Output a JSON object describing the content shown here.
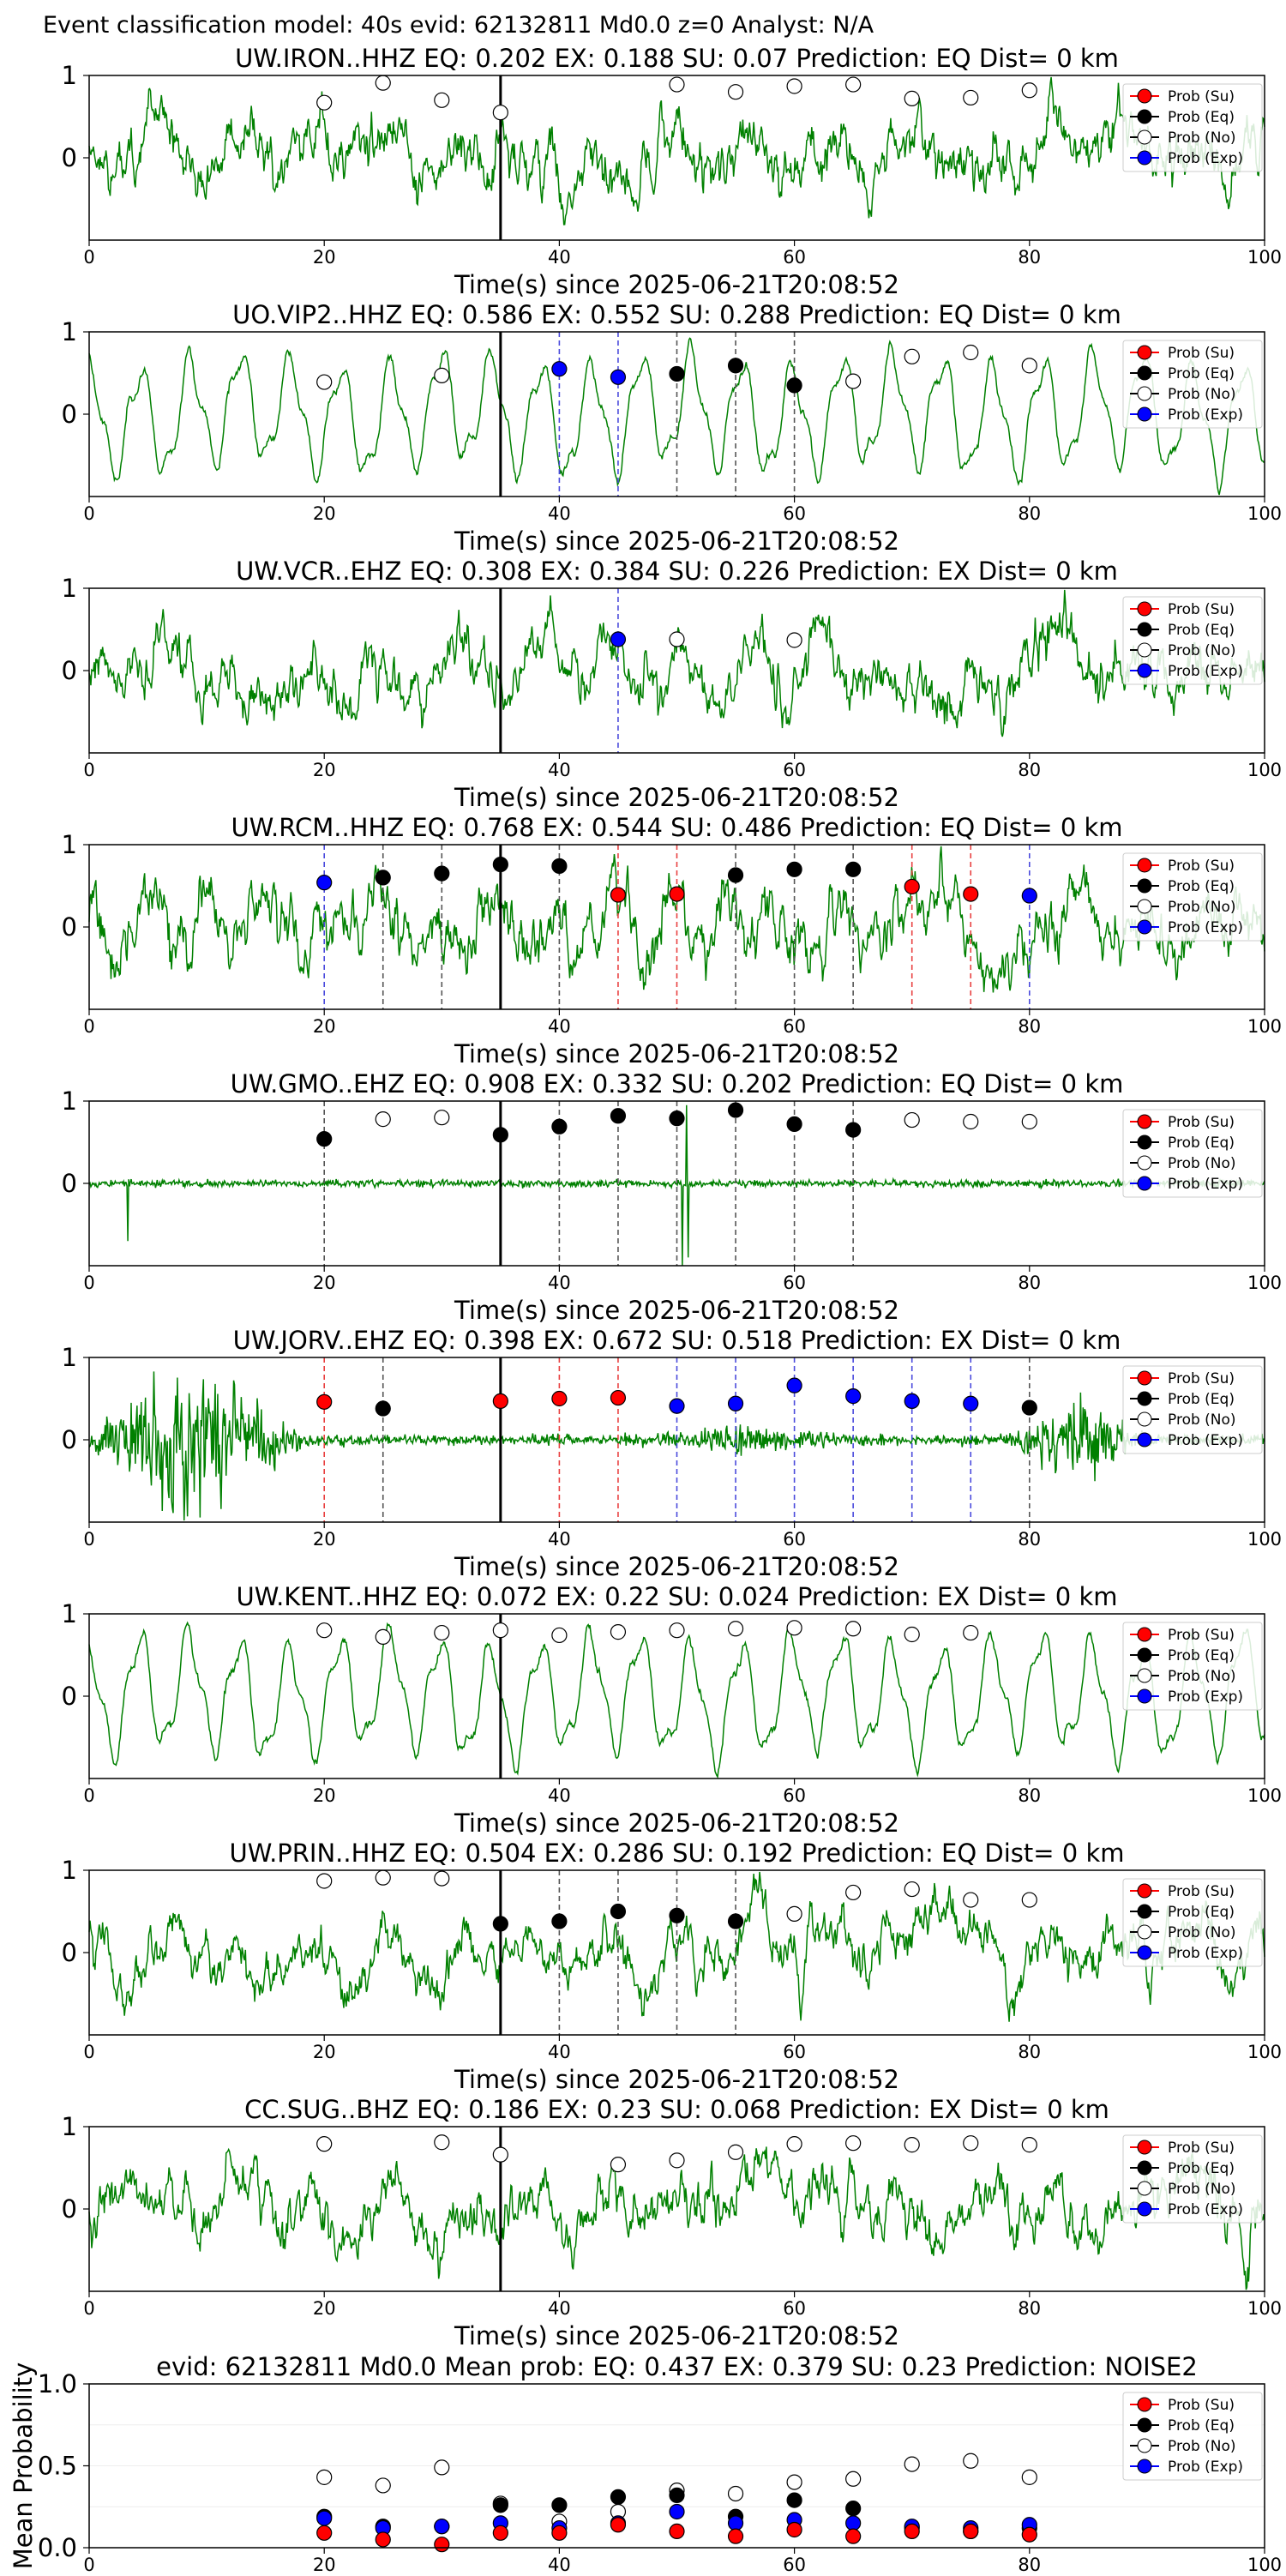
{
  "header": "Event classification model: 40s evid: 62132811 Md0.0 z=0 Analyst: N/A",
  "legend_labels": [
    "Prob (Su)",
    "Prob (Eq)",
    "Prob (No)",
    "Prob (Exp)"
  ],
  "colors": {
    "waveform": "#008000",
    "su": "#ff0000",
    "eq": "#000000",
    "no": "#ffffff",
    "exp": "#0000ff",
    "su_line": "#e84040",
    "eq_line": "#555555",
    "exp_line": "#4a4adc",
    "pick_line": "#000000"
  },
  "chart_data": [
    {
      "type": "scatter",
      "title": "UW.IRON..HHZ   EQ: 0.202  EX: 0.188  SU: 0.07   Prediction: EQ    Dist= 0 km",
      "xlabel": "Time(s) since 2025-06-21T20:08:52",
      "xlim": [
        0,
        100
      ],
      "ylim": [
        -1,
        1
      ],
      "xticks": [
        0,
        20,
        40,
        60,
        80,
        100
      ],
      "yticks": [
        0,
        1
      ],
      "pick_time": 35,
      "waveform": {
        "style": "noisy",
        "seed": 11
      },
      "points": [
        {
          "x": 20,
          "y": 0.67,
          "class": "no",
          "line": false
        },
        {
          "x": 25,
          "y": 0.91,
          "class": "no",
          "line": false
        },
        {
          "x": 30,
          "y": 0.7,
          "class": "no",
          "line": false
        },
        {
          "x": 35,
          "y": 0.55,
          "class": "no",
          "line": false
        },
        {
          "x": 50,
          "y": 0.89,
          "class": "no",
          "line": false
        },
        {
          "x": 55,
          "y": 0.8,
          "class": "no",
          "line": false
        },
        {
          "x": 60,
          "y": 0.87,
          "class": "no",
          "line": false
        },
        {
          "x": 65,
          "y": 0.89,
          "class": "no",
          "line": false
        },
        {
          "x": 70,
          "y": 0.72,
          "class": "no",
          "line": false
        },
        {
          "x": 75,
          "y": 0.73,
          "class": "no",
          "line": false
        },
        {
          "x": 80,
          "y": 0.82,
          "class": "no",
          "line": false
        }
      ]
    },
    {
      "type": "scatter",
      "title": "UO.VIP2..HHZ   EQ: 0.586  EX: 0.552  SU: 0.288   Prediction: EQ   Dist= 0 km",
      "xlabel": "Time(s) since 2025-06-21T20:08:52",
      "xlim": [
        0,
        100
      ],
      "ylim": [
        -1,
        1
      ],
      "xticks": [
        0,
        20,
        40,
        60,
        80,
        100
      ],
      "yticks": [
        0,
        1
      ],
      "pick_time": 35,
      "waveform": {
        "style": "oscillatory",
        "seed": 23
      },
      "points": [
        {
          "x": 20,
          "y": 0.39,
          "class": "no",
          "line": false
        },
        {
          "x": 30,
          "y": 0.47,
          "class": "no",
          "line": false
        },
        {
          "x": 40,
          "y": 0.55,
          "class": "exp",
          "line": true
        },
        {
          "x": 45,
          "y": 0.45,
          "class": "exp",
          "line": true
        },
        {
          "x": 50,
          "y": 0.49,
          "class": "eq",
          "line": true
        },
        {
          "x": 55,
          "y": 0.59,
          "class": "eq",
          "line": true
        },
        {
          "x": 60,
          "y": 0.35,
          "class": "eq",
          "line": true
        },
        {
          "x": 65,
          "y": 0.4,
          "class": "no",
          "line": false
        },
        {
          "x": 70,
          "y": 0.7,
          "class": "no",
          "line": false
        },
        {
          "x": 75,
          "y": 0.75,
          "class": "no",
          "line": false
        },
        {
          "x": 80,
          "y": 0.59,
          "class": "no",
          "line": false
        }
      ]
    },
    {
      "type": "scatter",
      "title": "UW.VCR..EHZ   EQ: 0.308  EX: 0.384  SU: 0.226   Prediction: EX    Dist= 0 km",
      "xlabel": "Time(s) since 2025-06-21T20:08:52",
      "xlim": [
        0,
        100
      ],
      "ylim": [
        -1,
        1
      ],
      "xticks": [
        0,
        20,
        40,
        60,
        80,
        100
      ],
      "yticks": [
        0,
        1
      ],
      "pick_time": 35,
      "waveform": {
        "style": "noisy",
        "seed": 37
      },
      "points": [
        {
          "x": 45,
          "y": 0.38,
          "class": "exp",
          "line": true
        },
        {
          "x": 50,
          "y": 0.38,
          "class": "no",
          "line": false
        },
        {
          "x": 60,
          "y": 0.37,
          "class": "no",
          "line": false
        }
      ]
    },
    {
      "type": "scatter",
      "title": "UW.RCM..HHZ   EQ: 0.768  EX: 0.544  SU: 0.486   Prediction: EQ    Dist= 0 km",
      "xlabel": "Time(s) since 2025-06-21T20:08:52",
      "xlim": [
        0,
        100
      ],
      "ylim": [
        -1,
        1
      ],
      "xticks": [
        0,
        20,
        40,
        60,
        80,
        100
      ],
      "yticks": [
        0,
        1
      ],
      "pick_time": 35,
      "waveform": {
        "style": "low",
        "seed": 41
      },
      "points": [
        {
          "x": 20,
          "y": 0.54,
          "class": "exp",
          "line": true
        },
        {
          "x": 25,
          "y": 0.6,
          "class": "eq",
          "line": true
        },
        {
          "x": 30,
          "y": 0.65,
          "class": "eq",
          "line": true
        },
        {
          "x": 35,
          "y": 0.76,
          "class": "eq",
          "line": false
        },
        {
          "x": 40,
          "y": 0.74,
          "class": "eq",
          "line": true
        },
        {
          "x": 45,
          "y": 0.39,
          "class": "su",
          "line": true
        },
        {
          "x": 50,
          "y": 0.4,
          "class": "su",
          "line": true
        },
        {
          "x": 55,
          "y": 0.63,
          "class": "eq",
          "line": true
        },
        {
          "x": 60,
          "y": 0.7,
          "class": "eq",
          "line": true
        },
        {
          "x": 65,
          "y": 0.7,
          "class": "eq",
          "line": true
        },
        {
          "x": 70,
          "y": 0.49,
          "class": "su",
          "line": true
        },
        {
          "x": 75,
          "y": 0.4,
          "class": "su",
          "line": true
        },
        {
          "x": 80,
          "y": 0.38,
          "class": "exp",
          "line": true
        }
      ]
    },
    {
      "type": "scatter",
      "title": "UW.GMO..EHZ   EQ: 0.908  EX: 0.332  SU: 0.202   Prediction: EQ    Dist= 0 km",
      "xlabel": "Time(s) since 2025-06-21T20:08:52",
      "xlim": [
        0,
        100
      ],
      "ylim": [
        -1,
        1
      ],
      "xticks": [
        0,
        20,
        40,
        60,
        80,
        100
      ],
      "yticks": [
        0,
        1
      ],
      "pick_time": 35,
      "waveform": {
        "style": "flat",
        "seed": 53
      },
      "points": [
        {
          "x": 20,
          "y": 0.54,
          "class": "eq",
          "line": true
        },
        {
          "x": 25,
          "y": 0.78,
          "class": "no",
          "line": false
        },
        {
          "x": 30,
          "y": 0.8,
          "class": "no",
          "line": false
        },
        {
          "x": 35,
          "y": 0.59,
          "class": "eq",
          "line": false
        },
        {
          "x": 40,
          "y": 0.69,
          "class": "eq",
          "line": true
        },
        {
          "x": 45,
          "y": 0.82,
          "class": "eq",
          "line": true
        },
        {
          "x": 50,
          "y": 0.79,
          "class": "eq",
          "line": true
        },
        {
          "x": 55,
          "y": 0.89,
          "class": "eq",
          "line": true
        },
        {
          "x": 60,
          "y": 0.72,
          "class": "eq",
          "line": true
        },
        {
          "x": 65,
          "y": 0.65,
          "class": "eq",
          "line": true
        },
        {
          "x": 70,
          "y": 0.77,
          "class": "no",
          "line": false
        },
        {
          "x": 75,
          "y": 0.75,
          "class": "no",
          "line": false
        },
        {
          "x": 80,
          "y": 0.75,
          "class": "no",
          "line": false
        }
      ]
    },
    {
      "type": "scatter",
      "title": "UW.JORV..EHZ   EQ: 0.398  EX: 0.672  SU: 0.518   Prediction: EX    Dist= 0 km",
      "xlabel": "Time(s) since 2025-06-21T20:08:52",
      "xlim": [
        0,
        100
      ],
      "ylim": [
        -1,
        1
      ],
      "xticks": [
        0,
        20,
        40,
        60,
        80,
        100
      ],
      "yticks": [
        0,
        1
      ],
      "pick_time": 35,
      "waveform": {
        "style": "bursts",
        "seed": 67
      },
      "points": [
        {
          "x": 20,
          "y": 0.46,
          "class": "su",
          "line": true
        },
        {
          "x": 25,
          "y": 0.38,
          "class": "eq",
          "line": true
        },
        {
          "x": 35,
          "y": 0.47,
          "class": "su",
          "line": false
        },
        {
          "x": 40,
          "y": 0.5,
          "class": "su",
          "line": true
        },
        {
          "x": 45,
          "y": 0.51,
          "class": "su",
          "line": true
        },
        {
          "x": 50,
          "y": 0.41,
          "class": "exp",
          "line": true
        },
        {
          "x": 55,
          "y": 0.44,
          "class": "exp",
          "line": true
        },
        {
          "x": 60,
          "y": 0.66,
          "class": "exp",
          "line": true
        },
        {
          "x": 65,
          "y": 0.53,
          "class": "exp",
          "line": true
        },
        {
          "x": 70,
          "y": 0.47,
          "class": "exp",
          "line": true
        },
        {
          "x": 75,
          "y": 0.44,
          "class": "exp",
          "line": true
        },
        {
          "x": 80,
          "y": 0.39,
          "class": "eq",
          "line": true
        }
      ]
    },
    {
      "type": "scatter",
      "title": "UW.KENT..HHZ   EQ: 0.072  EX: 0.22  SU: 0.024   Prediction: EX    Dist= 0 km",
      "xlabel": "Time(s) since 2025-06-21T20:08:52",
      "xlim": [
        0,
        100
      ],
      "ylim": [
        -1,
        1
      ],
      "xticks": [
        0,
        20,
        40,
        60,
        80,
        100
      ],
      "yticks": [
        0,
        1
      ],
      "pick_time": 35,
      "waveform": {
        "style": "oscillatory",
        "seed": 79
      },
      "points": [
        {
          "x": 20,
          "y": 0.8,
          "class": "no",
          "line": false
        },
        {
          "x": 25,
          "y": 0.72,
          "class": "no",
          "line": false
        },
        {
          "x": 30,
          "y": 0.77,
          "class": "no",
          "line": false
        },
        {
          "x": 35,
          "y": 0.8,
          "class": "no",
          "line": false
        },
        {
          "x": 40,
          "y": 0.74,
          "class": "no",
          "line": false
        },
        {
          "x": 45,
          "y": 0.78,
          "class": "no",
          "line": false
        },
        {
          "x": 50,
          "y": 0.8,
          "class": "no",
          "line": false
        },
        {
          "x": 55,
          "y": 0.82,
          "class": "no",
          "line": false
        },
        {
          "x": 60,
          "y": 0.83,
          "class": "no",
          "line": false
        },
        {
          "x": 65,
          "y": 0.82,
          "class": "no",
          "line": false
        },
        {
          "x": 70,
          "y": 0.75,
          "class": "no",
          "line": false
        },
        {
          "x": 75,
          "y": 0.77,
          "class": "no",
          "line": false
        }
      ]
    },
    {
      "type": "scatter",
      "title": "UW.PRIN..HHZ   EQ: 0.504  EX: 0.286  SU: 0.192   Prediction: EQ    Dist= 0 km",
      "xlabel": "Time(s) since 2025-06-21T20:08:52",
      "xlim": [
        0,
        100
      ],
      "ylim": [
        -1,
        1
      ],
      "xticks": [
        0,
        20,
        40,
        60,
        80,
        100
      ],
      "yticks": [
        0,
        1
      ],
      "pick_time": 35,
      "waveform": {
        "style": "noisy",
        "seed": 83
      },
      "points": [
        {
          "x": 20,
          "y": 0.87,
          "class": "no",
          "line": false
        },
        {
          "x": 25,
          "y": 0.91,
          "class": "no",
          "line": false
        },
        {
          "x": 30,
          "y": 0.9,
          "class": "no",
          "line": false
        },
        {
          "x": 35,
          "y": 0.35,
          "class": "eq",
          "line": false
        },
        {
          "x": 40,
          "y": 0.38,
          "class": "eq",
          "line": true
        },
        {
          "x": 45,
          "y": 0.5,
          "class": "eq",
          "line": true
        },
        {
          "x": 50,
          "y": 0.45,
          "class": "eq",
          "line": true
        },
        {
          "x": 55,
          "y": 0.38,
          "class": "eq",
          "line": true
        },
        {
          "x": 60,
          "y": 0.47,
          "class": "no",
          "line": false
        },
        {
          "x": 65,
          "y": 0.73,
          "class": "no",
          "line": false
        },
        {
          "x": 70,
          "y": 0.77,
          "class": "no",
          "line": false
        },
        {
          "x": 75,
          "y": 0.64,
          "class": "no",
          "line": false
        },
        {
          "x": 80,
          "y": 0.64,
          "class": "no",
          "line": false
        }
      ]
    },
    {
      "type": "scatter",
      "title": "CC.SUG..BHZ   EQ: 0.186  EX: 0.23  SU: 0.068   Prediction: EX    Dist= 0 km",
      "xlabel": "Time(s) since 2025-06-21T20:08:52",
      "xlim": [
        0,
        100
      ],
      "ylim": [
        -1,
        1
      ],
      "xticks": [
        0,
        20,
        40,
        60,
        80,
        100
      ],
      "yticks": [
        0,
        1
      ],
      "pick_time": 35,
      "waveform": {
        "style": "noisy",
        "seed": 97
      },
      "points": [
        {
          "x": 20,
          "y": 0.79,
          "class": "no",
          "line": false
        },
        {
          "x": 30,
          "y": 0.81,
          "class": "no",
          "line": false
        },
        {
          "x": 35,
          "y": 0.66,
          "class": "no",
          "line": false
        },
        {
          "x": 45,
          "y": 0.54,
          "class": "no",
          "line": false
        },
        {
          "x": 50,
          "y": 0.59,
          "class": "no",
          "line": false
        },
        {
          "x": 55,
          "y": 0.69,
          "class": "no",
          "line": false
        },
        {
          "x": 60,
          "y": 0.79,
          "class": "no",
          "line": false
        },
        {
          "x": 65,
          "y": 0.8,
          "class": "no",
          "line": false
        },
        {
          "x": 70,
          "y": 0.78,
          "class": "no",
          "line": false
        },
        {
          "x": 75,
          "y": 0.8,
          "class": "no",
          "line": false
        },
        {
          "x": 80,
          "y": 0.78,
          "class": "no",
          "line": false
        }
      ]
    },
    {
      "type": "scatter",
      "title": "evid: 62132811  Md0.0   Mean prob:   EQ: 0.437  EX: 0.379  SU: 0.23   Prediction: NOISE2",
      "ylabel": "Mean Probability",
      "xlabel": "",
      "xlim": [
        0,
        100
      ],
      "ylim": [
        0,
        1
      ],
      "xticks": [
        0,
        20,
        40,
        60,
        80,
        100
      ],
      "yticks": [
        0.0,
        0.5,
        1.0
      ],
      "ytick_labels": [
        "0.0",
        "0.5",
        "1.0"
      ],
      "x": [
        20,
        25,
        30,
        35,
        40,
        45,
        50,
        55,
        60,
        65,
        70,
        75,
        80
      ],
      "series": [
        {
          "class": "no",
          "values": [
            0.43,
            0.38,
            0.49,
            0.27,
            0.16,
            0.22,
            0.35,
            0.33,
            0.4,
            0.42,
            0.51,
            0.53,
            0.43
          ]
        },
        {
          "class": "eq",
          "values": [
            0.19,
            0.13,
            0.13,
            0.26,
            0.26,
            0.31,
            0.32,
            0.19,
            0.29,
            0.24,
            0.12,
            0.1,
            0.12
          ]
        },
        {
          "class": "exp",
          "values": [
            0.18,
            0.12,
            0.13,
            0.15,
            0.12,
            0.15,
            0.22,
            0.15,
            0.17,
            0.15,
            0.13,
            0.12,
            0.14
          ]
        },
        {
          "class": "su",
          "values": [
            0.09,
            0.05,
            0.02,
            0.09,
            0.09,
            0.14,
            0.1,
            0.07,
            0.11,
            0.07,
            0.1,
            0.1,
            0.08
          ]
        }
      ]
    }
  ]
}
